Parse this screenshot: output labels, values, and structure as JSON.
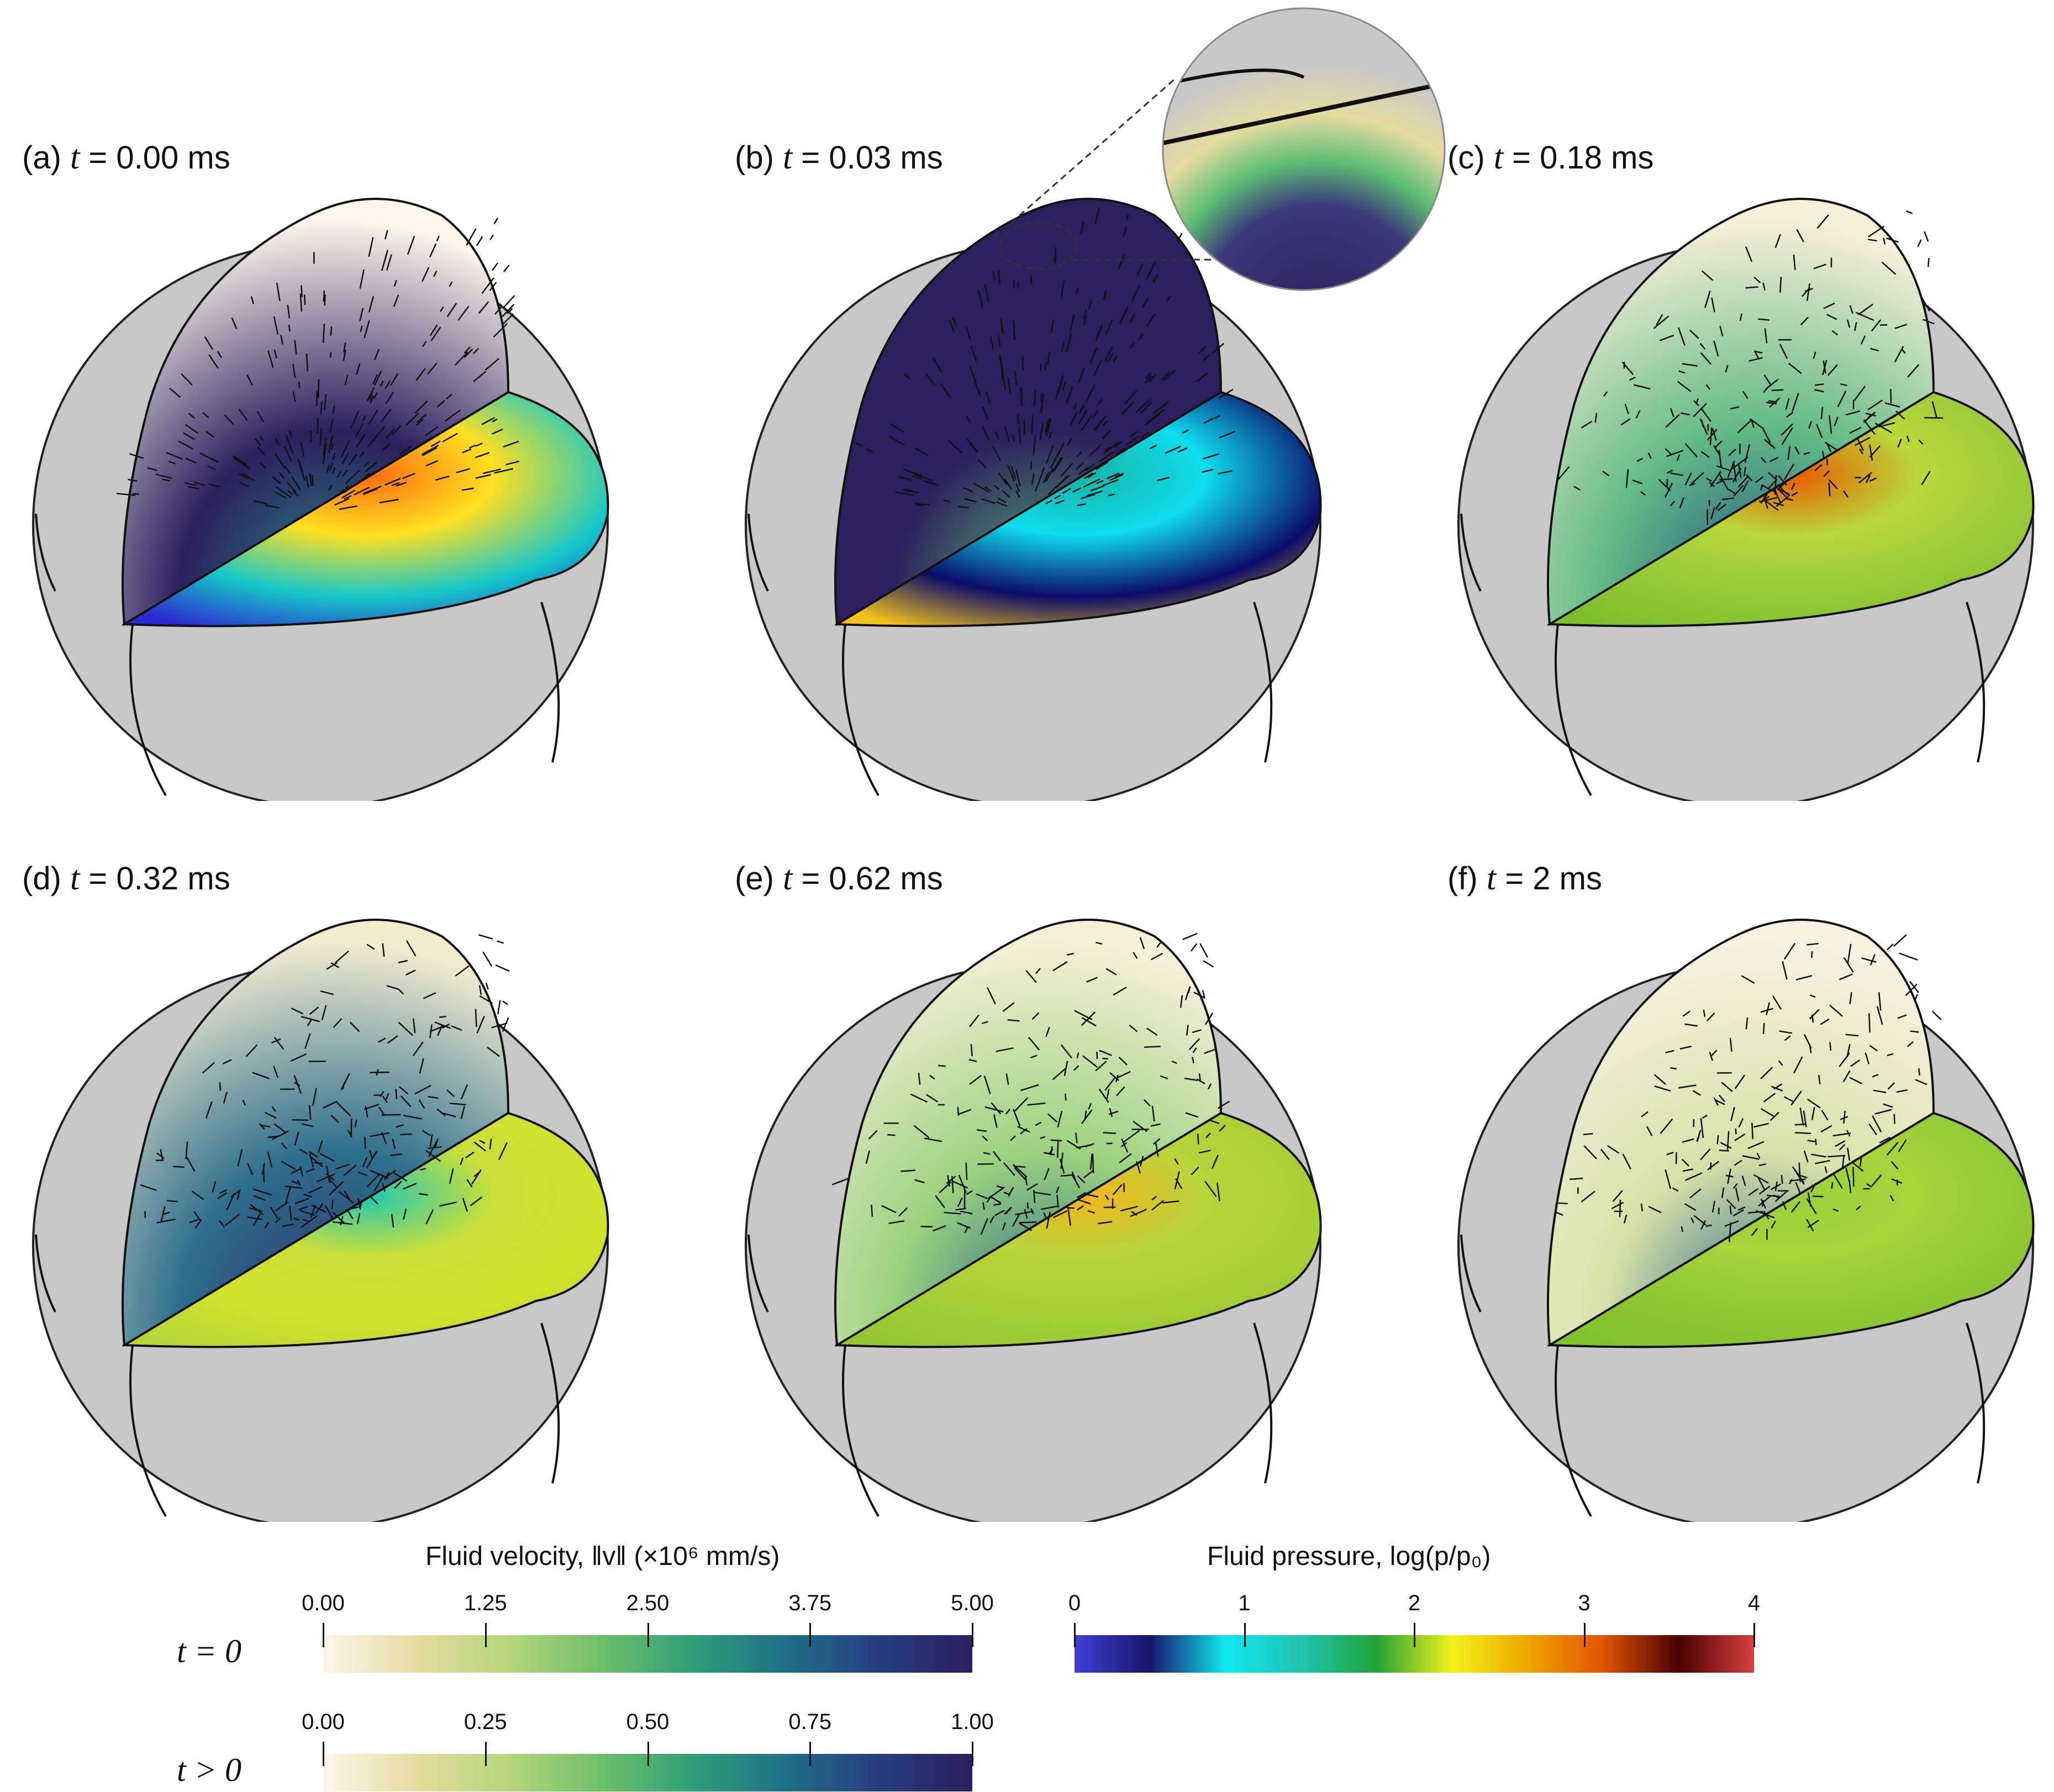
{
  "panels": [
    {
      "letter": "(a)",
      "time": "0.00",
      "unit": "ms"
    },
    {
      "letter": "(b)",
      "time": "0.03",
      "unit": "ms"
    },
    {
      "letter": "(c)",
      "time": "0.18",
      "unit": "ms"
    },
    {
      "letter": "(d)",
      "time": "0.32",
      "unit": "ms"
    },
    {
      "letter": "(e)",
      "time": "0.62",
      "unit": "ms"
    },
    {
      "letter": "(f)",
      "time": "2",
      "unit": "ms"
    }
  ],
  "time_symbol": "t",
  "equals": "=",
  "velocity_colorbar": {
    "title": "Fluid velocity, ‖v‖ (×10⁶ mm/s)",
    "row_t0": {
      "label": "t = 0",
      "ticks": [
        "0.00",
        "1.25",
        "2.50",
        "3.75",
        "5.00"
      ]
    },
    "row_tpos": {
      "label": "t > 0",
      "ticks": [
        "0.00",
        "0.25",
        "0.50",
        "0.75",
        "1.00"
      ]
    },
    "colors": [
      "#fdf6ea",
      "#e6dca0",
      "#b6d67a",
      "#6cc06a",
      "#2f9e78",
      "#1f6f86",
      "#263d80",
      "#2c1f5e"
    ]
  },
  "pressure_colorbar": {
    "title": "Fluid pressure, log(p/p₀)",
    "ticks": [
      "0",
      "1",
      "2",
      "3",
      "4"
    ],
    "colors": [
      "#3f3fd6",
      "#16166a",
      "#10e8f0",
      "#1fc3b0",
      "#22a335",
      "#f2f21a",
      "#f0a500",
      "#e05400",
      "#4a0000",
      "#d94040"
    ]
  }
}
